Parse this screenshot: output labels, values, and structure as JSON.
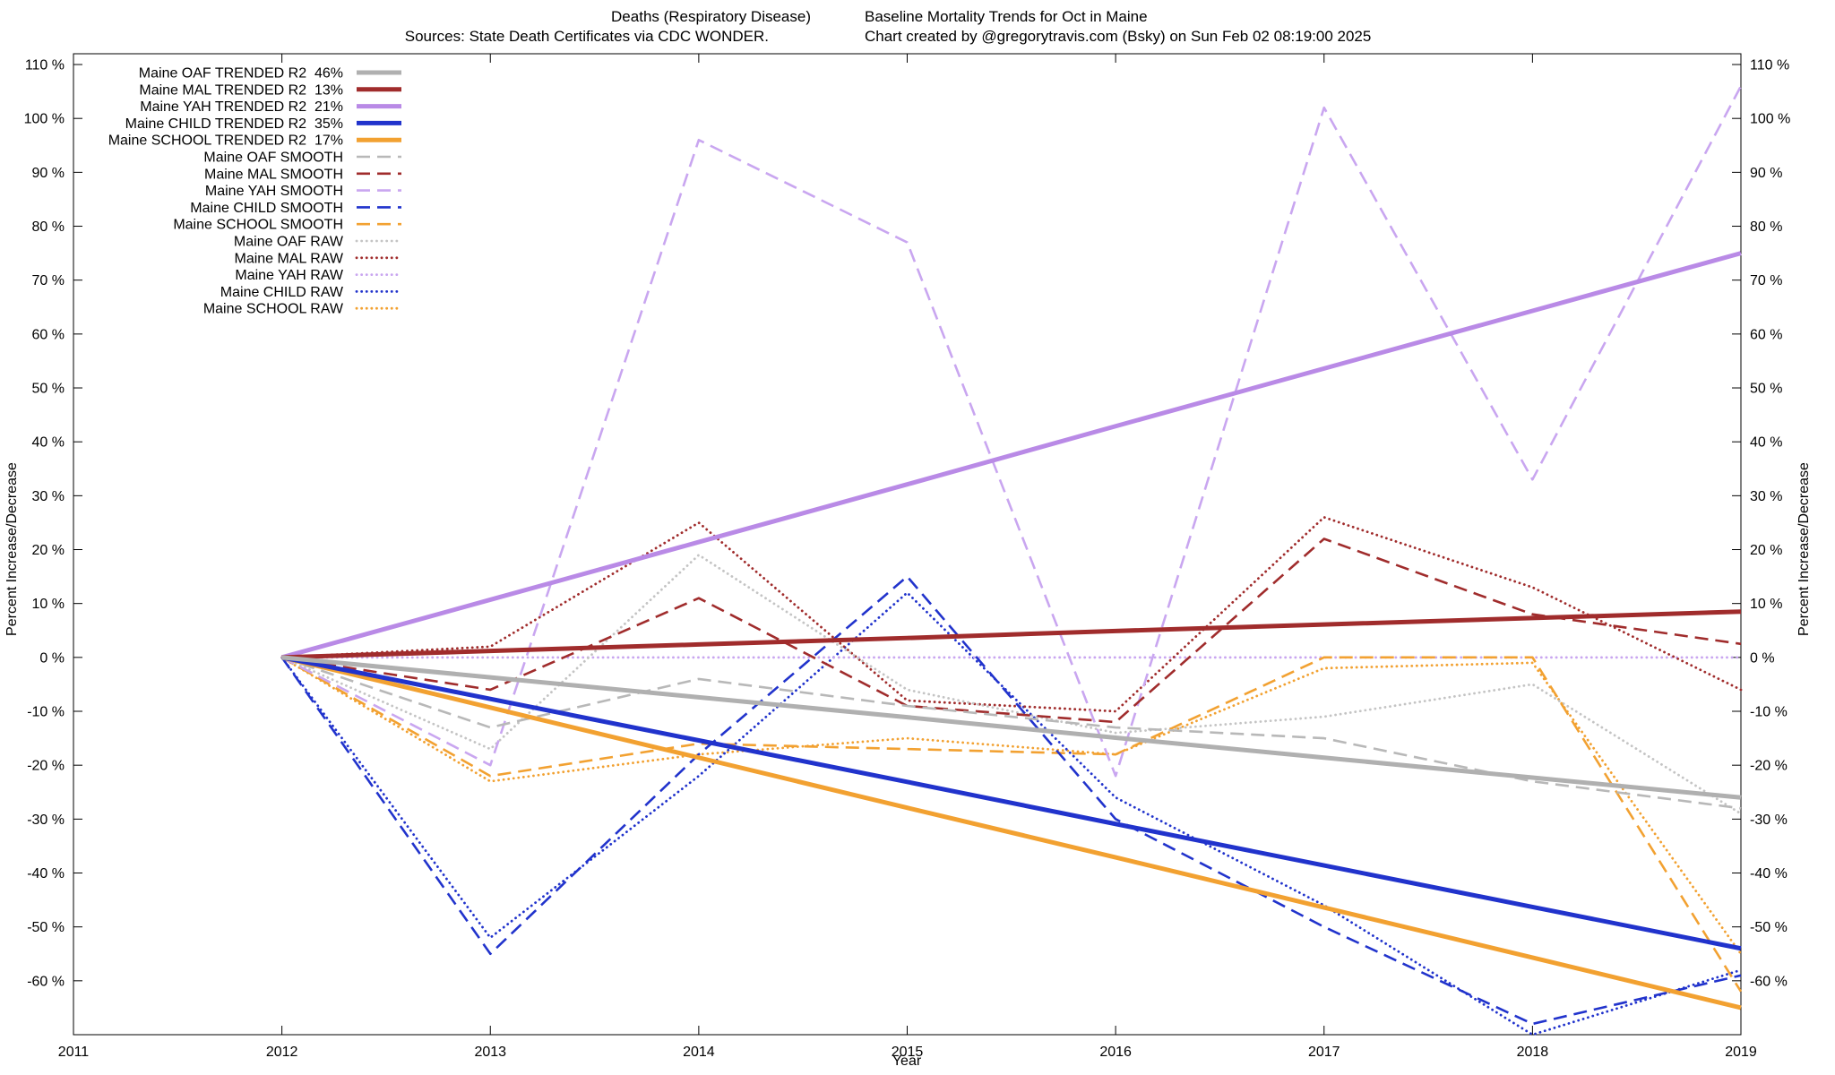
{
  "page": {
    "background": "#ffffff"
  },
  "header": {
    "title_left": "Deaths (Respiratory Disease)",
    "title_right": "Baseline Mortality Trends for Oct in Maine",
    "sources_left": "Sources: State Death Certificates via CDC WONDER.",
    "credit_right": "Chart created by @gregorytravis.com (Bsky) on Sun Feb 02 08:19:00 2025"
  },
  "chart_data": {
    "type": "line",
    "title": "Deaths (Respiratory Disease)  Baseline Mortality Trends for Oct in Maine",
    "subtitle": "Sources: State Death Certificates via CDC WONDER.  Chart created by @gregorytravis.com (Bsky) on Sun Feb 02 08:19:00 2025",
    "xlabel": "Year",
    "ylabel_left": "Percent Increase/Decrease",
    "ylabel_right": "Percent Increase/Decrease",
    "xlim": [
      2011,
      2019
    ],
    "ylim": [
      -70,
      112
    ],
    "x_ticks": [
      2011,
      2012,
      2013,
      2014,
      2015,
      2016,
      2017,
      2018,
      2019
    ],
    "y_ticks": [
      -60,
      -50,
      -40,
      -30,
      -20,
      -10,
      0,
      10,
      20,
      30,
      40,
      50,
      60,
      70,
      80,
      90,
      100,
      110
    ],
    "y_tick_suffix": " %",
    "grid": false,
    "legend_position": "top-left",
    "x": [
      2012,
      2013,
      2014,
      2015,
      2016,
      2017,
      2018,
      2019
    ],
    "series": [
      {
        "id": "oaf-trended",
        "name": "Maine OAF TRENDED R2  46%",
        "group": "OAF",
        "style": "trended",
        "color": "#b0b0b0",
        "r2": "46%",
        "values": [
          0,
          -3.7,
          -7.4,
          -11.1,
          -14.9,
          -18.6,
          -22.3,
          -26
        ]
      },
      {
        "id": "mal-trended",
        "name": "Maine MAL TRENDED R2  13%",
        "group": "MAL",
        "style": "trended",
        "color": "#a02c2c",
        "r2": "13%",
        "values": [
          0,
          1.2,
          2.4,
          3.6,
          4.9,
          6.1,
          7.3,
          8.5
        ]
      },
      {
        "id": "yah-trended",
        "name": "Maine YAH TRENDED R2  21%",
        "group": "YAH",
        "style": "trended",
        "color": "#b98ae6",
        "r2": "21%",
        "values": [
          0,
          10.7,
          21.4,
          32.1,
          42.9,
          53.6,
          64.3,
          75
        ]
      },
      {
        "id": "child-trended",
        "name": "Maine CHILD TRENDED R2  35%",
        "group": "CHILD",
        "style": "trended",
        "color": "#2133cc",
        "r2": "35%",
        "values": [
          0,
          -7.7,
          -15.4,
          -23.1,
          -30.9,
          -38.6,
          -46.3,
          -54
        ]
      },
      {
        "id": "school-trended",
        "name": "Maine SCHOOL TRENDED R2  17%",
        "group": "SCHOOL",
        "style": "trended",
        "color": "#f2a131",
        "r2": "17%",
        "values": [
          0,
          -9.3,
          -18.6,
          -27.9,
          -37.1,
          -46.4,
          -55.7,
          -65
        ]
      },
      {
        "id": "oaf-smooth",
        "name": "Maine OAF SMOOTH",
        "group": "OAF",
        "style": "smooth",
        "color": "#b8b8b8",
        "values": [
          0,
          -13,
          -4,
          -9,
          -13,
          -15,
          -23,
          -28
        ]
      },
      {
        "id": "mal-smooth",
        "name": "Maine MAL SMOOTH",
        "group": "MAL",
        "style": "smooth",
        "color": "#a02c2c",
        "values": [
          0,
          -6,
          11,
          -9,
          -12,
          22,
          8,
          2.5
        ]
      },
      {
        "id": "yah-smooth",
        "name": "Maine YAH SMOOTH",
        "group": "YAH",
        "style": "smooth",
        "color": "#c9a6f0",
        "values": [
          0,
          -20,
          96,
          77,
          -22,
          102,
          33,
          106
        ]
      },
      {
        "id": "child-smooth",
        "name": "Maine CHILD SMOOTH",
        "group": "CHILD",
        "style": "smooth",
        "color": "#2133cc",
        "values": [
          0,
          -55,
          -18,
          15,
          -30,
          -50,
          -68,
          -59
        ]
      },
      {
        "id": "school-smooth",
        "name": "Maine SCHOOL SMOOTH",
        "group": "SCHOOL",
        "style": "smooth",
        "color": "#f2a131",
        "values": [
          0,
          -22,
          -16,
          -17,
          -18,
          0,
          0,
          -62
        ]
      },
      {
        "id": "oaf-raw",
        "name": "Maine OAF RAW",
        "group": "OAF",
        "style": "raw",
        "color": "#c4c4c4",
        "values": [
          0,
          -17,
          19,
          -6,
          -14,
          -11,
          -5,
          -29
        ]
      },
      {
        "id": "mal-raw",
        "name": "Maine MAL RAW",
        "group": "MAL",
        "style": "raw",
        "color": "#a02c2c",
        "values": [
          0,
          2,
          25,
          -8,
          -10,
          26,
          13,
          -6
        ]
      },
      {
        "id": "yah-raw",
        "name": "Maine YAH RAW",
        "group": "YAH",
        "style": "raw",
        "color": "#c9a6f0",
        "values": [
          0,
          0,
          0,
          0,
          0,
          0,
          0,
          0
        ]
      },
      {
        "id": "child-raw",
        "name": "Maine CHILD RAW",
        "group": "CHILD",
        "style": "raw",
        "color": "#2133cc",
        "values": [
          0,
          -52,
          -22,
          12,
          -26,
          -46,
          -70,
          -58
        ]
      },
      {
        "id": "school-raw",
        "name": "Maine SCHOOL RAW",
        "group": "SCHOOL",
        "style": "raw",
        "color": "#f2a131",
        "values": [
          0,
          -23,
          -18,
          -15,
          -18,
          -2,
          -1,
          -55
        ]
      }
    ]
  }
}
